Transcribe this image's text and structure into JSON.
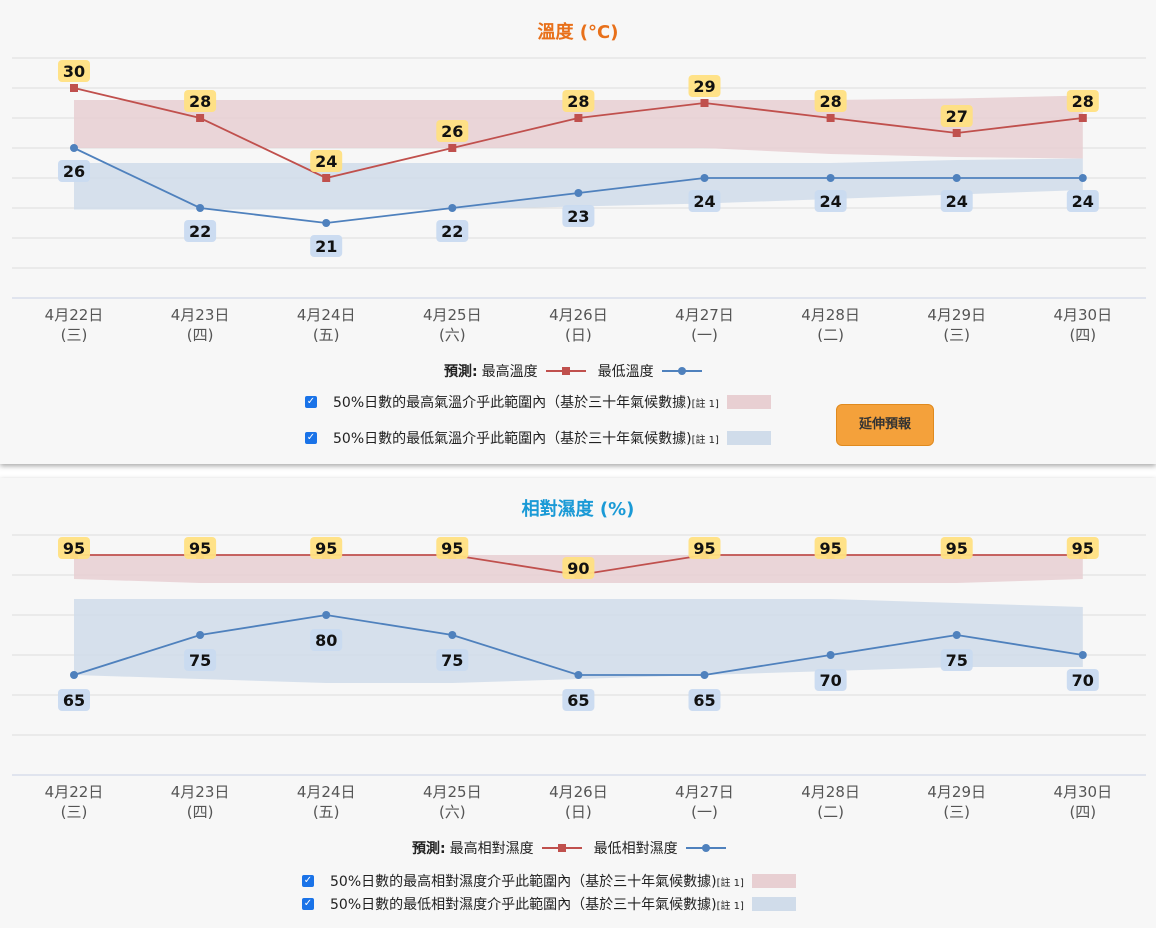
{
  "dates": [
    {
      "date": "4月22日",
      "dow": "(三)"
    },
    {
      "date": "4月23日",
      "dow": "(四)"
    },
    {
      "date": "4月24日",
      "dow": "(五)"
    },
    {
      "date": "4月25日",
      "dow": "(六)"
    },
    {
      "date": "4月26日",
      "dow": "(日)"
    },
    {
      "date": "4月27日",
      "dow": "(一)"
    },
    {
      "date": "4月28日",
      "dow": "(二)"
    },
    {
      "date": "4月29日",
      "dow": "(三)"
    },
    {
      "date": "4月30日",
      "dow": "(四)"
    }
  ],
  "colors": {
    "max": "#c0504d",
    "min": "#4f81bd",
    "max_band": "#e8cfd2",
    "min_band": "#d0dcea",
    "max_label_bg": "#ffe082",
    "min_label_bg": "#c9daf0",
    "temp_title": "#e8701a",
    "hum_title": "#1a9ad6",
    "button": "#f4a13b"
  },
  "temperature": {
    "legend": {
      "prefix": "預測:",
      "max": "最高溫度",
      "min": "最低溫度",
      "band_max": "50%日數的最高氣溫介乎此範圍內（基於三十年氣候數據)",
      "band_min": "50%日數的最低氣溫介乎此範圍內（基於三十年氣候數據)",
      "note": "[註 1]"
    },
    "extend_button": "延伸預報"
  },
  "humidity": {
    "legend": {
      "prefix": "預測:",
      "max": "最高相對濕度",
      "min": "最低相對濕度",
      "band_max": "50%日數的最高相對濕度介乎此範圍內（基於三十年氣候數據)",
      "band_min": "50%日數的最低相對濕度介乎此範圍內（基於三十年氣候數據)",
      "note": "[註 1]"
    }
  },
  "chart_data": [
    {
      "type": "line",
      "title": "溫度 (°C)",
      "categories": [
        "4月22日 (三)",
        "4月23日 (四)",
        "4月24日 (五)",
        "4月25日 (六)",
        "4月26日 (日)",
        "4月27日 (一)",
        "4月28日 (二)",
        "4月29日 (三)",
        "4月30日 (四)"
      ],
      "series": [
        {
          "name": "最高溫度",
          "values": [
            30,
            28,
            24,
            26,
            28,
            29,
            28,
            27,
            28
          ]
        },
        {
          "name": "最低溫度",
          "values": [
            26,
            22,
            21,
            22,
            23,
            24,
            24,
            24,
            24
          ]
        }
      ],
      "bands": [
        {
          "name": "50%日數的最高氣溫介乎此範圍內（基於三十年氣候數據)",
          "low": [
            26,
            26,
            26,
            26,
            26,
            26,
            25.6,
            25.4,
            25.3
          ],
          "high": [
            29.2,
            29.2,
            29.2,
            29.2,
            29.2,
            29.2,
            29.2,
            29.3,
            29.5
          ]
        },
        {
          "name": "50%日數的最低氣溫介乎此範圍內（基於三十年氣候數據)",
          "low": [
            21.9,
            21.9,
            21.9,
            21.9,
            22.1,
            22.3,
            22.6,
            22.9,
            23.2
          ],
          "high": [
            25,
            25,
            25,
            25,
            25,
            25,
            25,
            25.2,
            25.3
          ]
        }
      ],
      "ylim": [
        16,
        32
      ],
      "grid": true,
      "legend": "bottom"
    },
    {
      "type": "line",
      "title": "相對濕度 (%)",
      "categories": [
        "4月22日 (三)",
        "4月23日 (四)",
        "4月24日 (五)",
        "4月25日 (六)",
        "4月26日 (日)",
        "4月27日 (一)",
        "4月28日 (二)",
        "4月29日 (三)",
        "4月30日 (四)"
      ],
      "series": [
        {
          "name": "最高相對濕度",
          "values": [
            95,
            95,
            95,
            95,
            90,
            95,
            95,
            95,
            95
          ]
        },
        {
          "name": "最低相對濕度",
          "values": [
            65,
            75,
            80,
            75,
            65,
            65,
            70,
            75,
            70
          ]
        }
      ],
      "bands": [
        {
          "name": "50%日數的最高相對濕度介乎此範圍內（基於三十年氣候數據)",
          "low": [
            89,
            88,
            88,
            88,
            88,
            88,
            88,
            88,
            89
          ],
          "high": [
            95,
            95,
            95,
            95,
            95,
            95,
            95,
            95,
            95
          ]
        },
        {
          "name": "50%日數的最低相對濕度介乎此範圍內（基於三十年氣候數據)",
          "low": [
            65,
            64,
            63,
            63,
            64,
            65,
            66,
            67,
            67
          ],
          "high": [
            84,
            84,
            84,
            84,
            84,
            84,
            84,
            83,
            82
          ]
        }
      ],
      "ylim": [
        40,
        100
      ],
      "grid": true,
      "legend": "bottom"
    }
  ]
}
